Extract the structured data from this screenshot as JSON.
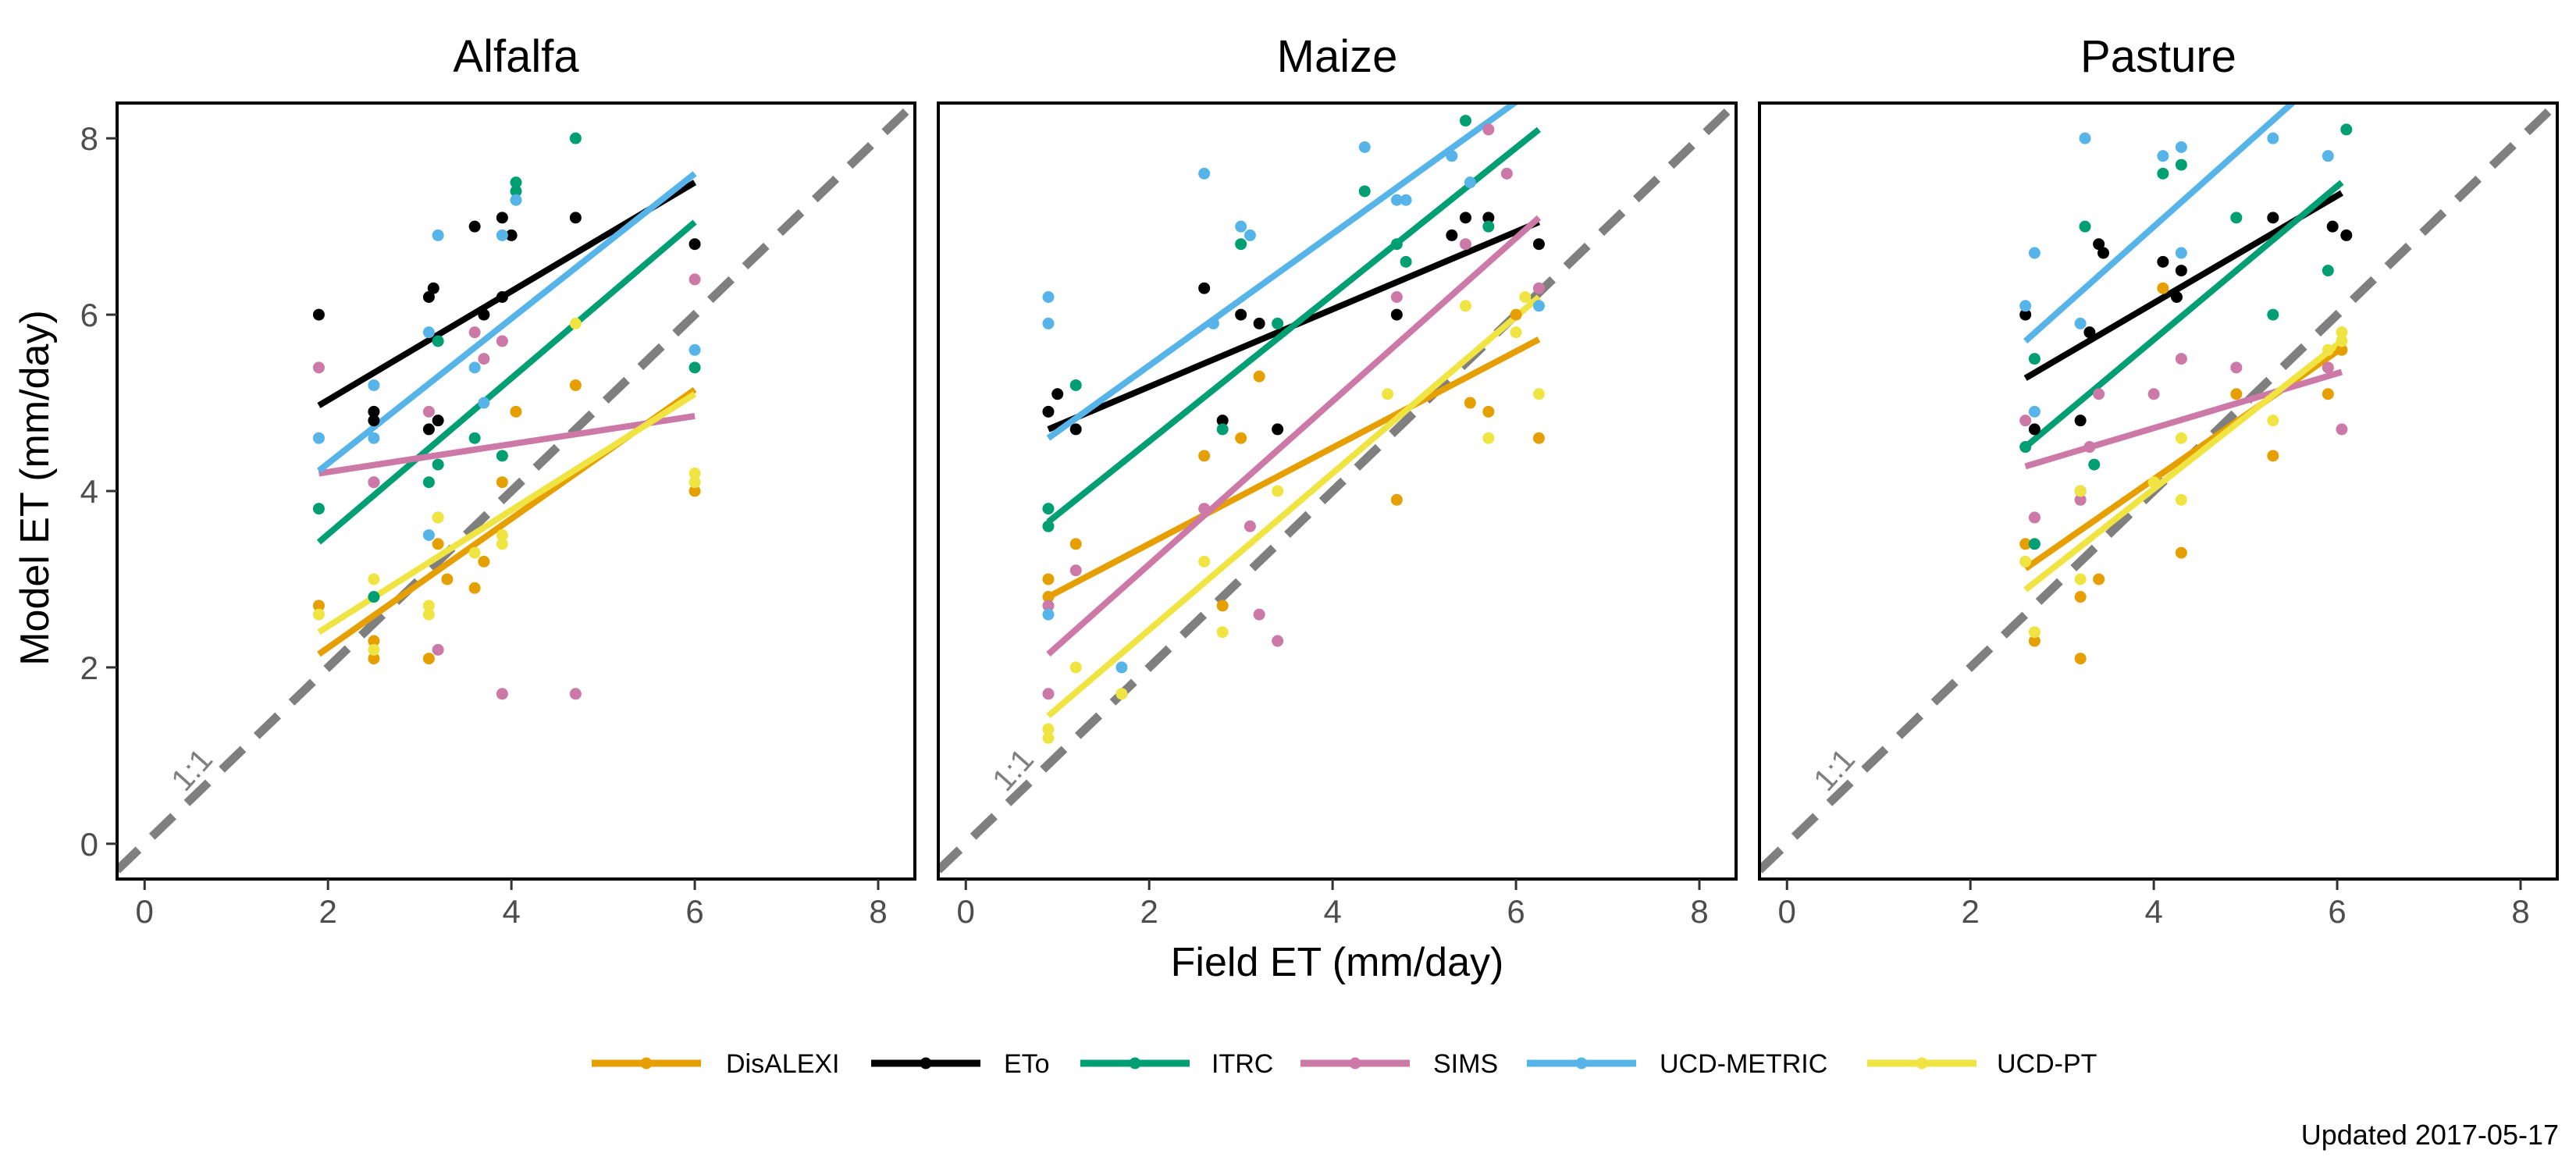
{
  "chart_data": {
    "type": "scatter",
    "xlabel": "Field ET (mm/day)",
    "ylabel": "Model ET (mm/day)",
    "xlim": [
      -0.3,
      8.4
    ],
    "ylim": [
      -0.4,
      8.4
    ],
    "x_ticks": [
      "0",
      "2",
      "4",
      "6",
      "8"
    ],
    "y_ticks": [
      "0",
      "2",
      "4",
      "6",
      "8"
    ],
    "grid": false,
    "legend_position": "bottom",
    "reference_line": {
      "label": "1:1",
      "slope": 1,
      "intercept": 0,
      "color": "#7f7f7f",
      "style": "dashed"
    },
    "caption": "Updated  2017-05-17",
    "series_styles": [
      {
        "name": "DisALEXI",
        "color": "#E69F00"
      },
      {
        "name": "ETo",
        "color": "#000000"
      },
      {
        "name": "ITRC",
        "color": "#009E73"
      },
      {
        "name": "SIMS",
        "color": "#CC79A7"
      },
      {
        "name": "UCD-METRIC",
        "color": "#56B4E9"
      },
      {
        "name": "UCD-PT",
        "color": "#F0E442"
      }
    ],
    "panels": [
      {
        "title": "Alfalfa",
        "fits": {
          "DisALEXI": [
            [
              1.9,
              2.15
            ],
            [
              6.0,
              5.15
            ]
          ],
          "ETo": [
            [
              1.9,
              4.97
            ],
            [
              6.0,
              7.5
            ]
          ],
          "ITRC": [
            [
              1.9,
              3.42
            ],
            [
              6.0,
              7.05
            ]
          ],
          "SIMS": [
            [
              1.9,
              4.2
            ],
            [
              6.0,
              4.85
            ]
          ],
          "UCD-METRIC": [
            [
              1.9,
              4.23
            ],
            [
              6.0,
              7.6
            ]
          ],
          "UCD-PT": [
            [
              1.9,
              2.4
            ],
            [
              6.0,
              5.1
            ]
          ]
        },
        "points": {
          "DisALEXI": [
            [
              1.9,
              2.7
            ],
            [
              2.5,
              2.3
            ],
            [
              2.5,
              2.1
            ],
            [
              3.1,
              2.1
            ],
            [
              3.2,
              3.4
            ],
            [
              3.6,
              2.9
            ],
            [
              3.7,
              3.2
            ],
            [
              3.9,
              4.1
            ],
            [
              4.05,
              4.9
            ],
            [
              4.7,
              5.2
            ],
            [
              6.0,
              4.0
            ],
            [
              3.3,
              3.0
            ]
          ],
          "ETo": [
            [
              1.9,
              6.0
            ],
            [
              2.5,
              4.9
            ],
            [
              2.5,
              4.8
            ],
            [
              3.1,
              6.2
            ],
            [
              3.15,
              6.3
            ],
            [
              3.1,
              4.7
            ],
            [
              3.2,
              4.8
            ],
            [
              3.6,
              7.0
            ],
            [
              3.9,
              7.1
            ],
            [
              4.0,
              6.9
            ],
            [
              4.7,
              7.1
            ],
            [
              6.0,
              6.8
            ],
            [
              3.7,
              6.0
            ],
            [
              3.9,
              6.2
            ]
          ],
          "ITRC": [
            [
              1.9,
              3.8
            ],
            [
              2.5,
              4.1
            ],
            [
              2.5,
              2.8
            ],
            [
              3.1,
              4.1
            ],
            [
              3.2,
              4.3
            ],
            [
              3.6,
              4.6
            ],
            [
              3.9,
              4.4
            ],
            [
              4.05,
              7.5
            ],
            [
              4.05,
              7.4
            ],
            [
              4.7,
              8.0
            ],
            [
              6.0,
              5.4
            ],
            [
              3.2,
              5.7
            ]
          ],
          "SIMS": [
            [
              1.9,
              5.4
            ],
            [
              2.5,
              4.1
            ],
            [
              3.1,
              4.9
            ],
            [
              3.2,
              2.2
            ],
            [
              3.6,
              5.8
            ],
            [
              3.9,
              5.7
            ],
            [
              3.9,
              1.7
            ],
            [
              4.7,
              1.7
            ],
            [
              6.0,
              6.4
            ],
            [
              3.7,
              5.5
            ]
          ],
          "UCD-METRIC": [
            [
              1.9,
              4.6
            ],
            [
              2.5,
              5.2
            ],
            [
              2.5,
              4.6
            ],
            [
              3.1,
              3.5
            ],
            [
              3.2,
              3.7
            ],
            [
              3.2,
              6.9
            ],
            [
              3.6,
              5.4
            ],
            [
              3.9,
              6.9
            ],
            [
              4.05,
              7.3
            ],
            [
              6.0,
              5.6
            ],
            [
              3.1,
              5.8
            ],
            [
              3.7,
              5.0
            ]
          ],
          "UCD-PT": [
            [
              1.9,
              2.6
            ],
            [
              2.5,
              3.0
            ],
            [
              2.5,
              2.2
            ],
            [
              3.1,
              2.7
            ],
            [
              3.1,
              2.6
            ],
            [
              3.2,
              3.7
            ],
            [
              3.6,
              3.3
            ],
            [
              3.9,
              3.4
            ],
            [
              3.9,
              3.5
            ],
            [
              4.7,
              5.9
            ],
            [
              6.0,
              4.2
            ],
            [
              6.0,
              4.1
            ]
          ]
        }
      },
      {
        "title": "Maize",
        "fits": {
          "DisALEXI": [
            [
              0.9,
              2.8
            ],
            [
              6.25,
              5.72
            ]
          ],
          "ETo": [
            [
              0.9,
              4.7
            ],
            [
              6.25,
              7.05
            ]
          ],
          "ITRC": [
            [
              0.9,
              3.65
            ],
            [
              6.25,
              8.1
            ]
          ],
          "SIMS": [
            [
              0.9,
              2.15
            ],
            [
              6.25,
              7.1
            ]
          ],
          "UCD-METRIC": [
            [
              0.9,
              4.6
            ],
            [
              6.25,
              8.6
            ]
          ],
          "UCD-PT": [
            [
              0.9,
              1.45
            ],
            [
              6.25,
              6.2
            ]
          ]
        },
        "points": {
          "DisALEXI": [
            [
              0.9,
              3.0
            ],
            [
              0.9,
              2.8
            ],
            [
              1.2,
              3.4
            ],
            [
              2.6,
              4.4
            ],
            [
              2.8,
              2.7
            ],
            [
              3.2,
              5.3
            ],
            [
              3.0,
              4.6
            ],
            [
              4.7,
              3.9
            ],
            [
              5.5,
              5.0
            ],
            [
              5.7,
              4.9
            ],
            [
              6.25,
              4.6
            ],
            [
              6.0,
              6.0
            ]
          ],
          "ETo": [
            [
              0.9,
              4.9
            ],
            [
              1.0,
              5.1
            ],
            [
              1.2,
              4.7
            ],
            [
              2.6,
              6.3
            ],
            [
              2.8,
              4.8
            ],
            [
              3.0,
              6.0
            ],
            [
              3.2,
              5.9
            ],
            [
              3.4,
              4.7
            ],
            [
              4.7,
              6.0
            ],
            [
              5.3,
              6.9
            ],
            [
              5.45,
              7.1
            ],
            [
              5.7,
              7.1
            ],
            [
              6.25,
              6.8
            ]
          ],
          "ITRC": [
            [
              0.9,
              3.8
            ],
            [
              0.9,
              3.6
            ],
            [
              1.2,
              5.2
            ],
            [
              2.8,
              4.7
            ],
            [
              3.0,
              6.8
            ],
            [
              3.4,
              5.9
            ],
            [
              4.35,
              7.4
            ],
            [
              4.7,
              6.8
            ],
            [
              5.45,
              8.2
            ],
            [
              5.7,
              7.0
            ],
            [
              4.8,
              6.6
            ]
          ],
          "SIMS": [
            [
              0.9,
              1.7
            ],
            [
              0.9,
              2.7
            ],
            [
              1.2,
              3.1
            ],
            [
              2.6,
              3.8
            ],
            [
              3.1,
              3.6
            ],
            [
              3.2,
              2.6
            ],
            [
              3.4,
              2.3
            ],
            [
              4.7,
              6.2
            ],
            [
              5.45,
              6.8
            ],
            [
              5.7,
              8.1
            ],
            [
              5.9,
              7.6
            ],
            [
              6.25,
              6.3
            ]
          ],
          "UCD-METRIC": [
            [
              0.9,
              6.2
            ],
            [
              0.9,
              5.9
            ],
            [
              0.9,
              2.6
            ],
            [
              1.7,
              2.0
            ],
            [
              2.6,
              7.6
            ],
            [
              2.7,
              5.9
            ],
            [
              3.0,
              7.0
            ],
            [
              3.1,
              6.9
            ],
            [
              4.35,
              7.9
            ],
            [
              4.7,
              7.3
            ],
            [
              4.8,
              7.3
            ],
            [
              5.3,
              7.8
            ],
            [
              5.5,
              7.5
            ],
            [
              6.25,
              6.1
            ]
          ],
          "UCD-PT": [
            [
              0.9,
              1.2
            ],
            [
              0.9,
              1.3
            ],
            [
              1.2,
              2.0
            ],
            [
              1.7,
              1.7
            ],
            [
              2.6,
              3.2
            ],
            [
              2.8,
              2.4
            ],
            [
              3.4,
              4.0
            ],
            [
              4.6,
              5.1
            ],
            [
              5.45,
              6.1
            ],
            [
              5.7,
              4.6
            ],
            [
              6.0,
              5.8
            ],
            [
              6.25,
              5.1
            ],
            [
              6.1,
              6.2
            ]
          ]
        }
      },
      {
        "title": "Pasture",
        "fits": {
          "DisALEXI": [
            [
              2.6,
              3.12
            ],
            [
              6.05,
              5.62
            ]
          ],
          "ETo": [
            [
              2.6,
              5.28
            ],
            [
              6.05,
              7.38
            ]
          ],
          "ITRC": [
            [
              2.6,
              4.5
            ],
            [
              6.05,
              7.5
            ]
          ],
          "SIMS": [
            [
              2.6,
              4.28
            ],
            [
              6.05,
              5.35
            ]
          ],
          "UCD-METRIC": [
            [
              2.6,
              5.7
            ],
            [
              6.05,
              8.9
            ]
          ],
          "UCD-PT": [
            [
              2.6,
              2.88
            ],
            [
              6.05,
              5.7
            ]
          ]
        },
        "points": {
          "DisALEXI": [
            [
              2.6,
              3.4
            ],
            [
              2.7,
              2.3
            ],
            [
              3.2,
              2.8
            ],
            [
              3.2,
              2.1
            ],
            [
              3.4,
              3.0
            ],
            [
              4.1,
              6.3
            ],
            [
              4.3,
              3.3
            ],
            [
              4.9,
              5.1
            ],
            [
              5.3,
              4.4
            ],
            [
              5.9,
              5.1
            ],
            [
              6.05,
              5.6
            ]
          ],
          "ETo": [
            [
              2.6,
              6.0
            ],
            [
              2.7,
              4.7
            ],
            [
              3.2,
              4.8
            ],
            [
              3.3,
              5.8
            ],
            [
              3.4,
              6.8
            ],
            [
              3.45,
              6.7
            ],
            [
              4.1,
              6.6
            ],
            [
              4.25,
              6.2
            ],
            [
              4.3,
              6.5
            ],
            [
              5.3,
              7.1
            ],
            [
              5.95,
              7.0
            ],
            [
              6.1,
              6.9
            ]
          ],
          "ITRC": [
            [
              2.6,
              4.5
            ],
            [
              2.7,
              5.5
            ],
            [
              2.7,
              3.4
            ],
            [
              3.2,
              4.0
            ],
            [
              3.25,
              7.0
            ],
            [
              3.35,
              4.3
            ],
            [
              4.1,
              7.6
            ],
            [
              4.3,
              7.7
            ],
            [
              4.9,
              7.1
            ],
            [
              5.3,
              6.0
            ],
            [
              5.9,
              6.5
            ],
            [
              6.1,
              8.1
            ]
          ],
          "SIMS": [
            [
              2.6,
              4.8
            ],
            [
              2.7,
              3.7
            ],
            [
              3.2,
              3.9
            ],
            [
              3.3,
              4.5
            ],
            [
              3.4,
              5.1
            ],
            [
              4.0,
              5.1
            ],
            [
              4.3,
              5.5
            ],
            [
              4.9,
              5.4
            ],
            [
              5.9,
              5.4
            ],
            [
              6.05,
              4.7
            ]
          ],
          "UCD-METRIC": [
            [
              2.6,
              6.1
            ],
            [
              2.7,
              6.7
            ],
            [
              2.7,
              4.9
            ],
            [
              3.2,
              5.9
            ],
            [
              3.25,
              8.0
            ],
            [
              4.1,
              7.8
            ],
            [
              4.3,
              7.9
            ],
            [
              4.3,
              6.7
            ],
            [
              4.9,
              8.5
            ],
            [
              5.3,
              8.0
            ],
            [
              5.9,
              7.8
            ]
          ],
          "UCD-PT": [
            [
              2.6,
              3.2
            ],
            [
              2.7,
              2.4
            ],
            [
              3.2,
              3.0
            ],
            [
              3.2,
              4.0
            ],
            [
              4.0,
              4.1
            ],
            [
              4.3,
              3.9
            ],
            [
              4.3,
              4.6
            ],
            [
              5.3,
              4.8
            ],
            [
              5.9,
              5.6
            ],
            [
              6.05,
              5.8
            ],
            [
              6.05,
              5.7
            ]
          ]
        }
      }
    ]
  }
}
